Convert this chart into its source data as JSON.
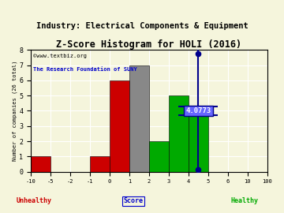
{
  "title": "Z-Score Histogram for HOLI (2016)",
  "subtitle": "Industry: Electrical Components & Equipment",
  "watermark1": "©www.textbiz.org",
  "watermark2": "The Research Foundation of SUNY",
  "xlabel_center": "Score",
  "xlabel_left": "Unhealthy",
  "xlabel_right": "Healthy",
  "ylabel": "Number of companies (26 total)",
  "tick_labels": [
    "-10",
    "-5",
    "-2",
    "-1",
    "0",
    "1",
    "2",
    "3",
    "4",
    "5",
    "6",
    "10",
    "100"
  ],
  "counts": [
    1,
    0,
    0,
    1,
    6,
    7,
    2,
    5,
    4,
    0,
    0,
    0
  ],
  "colors": [
    "#cc0000",
    "#cc0000",
    "#cc0000",
    "#cc0000",
    "#cc0000",
    "#888888",
    "#00aa00",
    "#00aa00",
    "#00aa00",
    "#00aa00",
    "#00aa00",
    "#00aa00"
  ],
  "zscore_value": 4.0773,
  "zscore_label": "4.0773",
  "zscore_bar_index": 8,
  "ylim": [
    0,
    8
  ],
  "yticks": [
    0,
    1,
    2,
    3,
    4,
    5,
    6,
    7,
    8
  ],
  "bg_color": "#f5f5dc",
  "title_fontsize": 8.5,
  "subtitle_fontsize": 7.5,
  "watermark_color1": "#000000",
  "watermark_color2": "#0000cc",
  "unhealthy_color": "#cc0000",
  "healthy_color": "#00aa00",
  "score_color": "#0000cc",
  "zscore_line_color": "#00008b",
  "zscore_dot_color": "#00008b",
  "zscore_box_fg": "#ffffff",
  "zscore_box_bg": "#6666ff"
}
